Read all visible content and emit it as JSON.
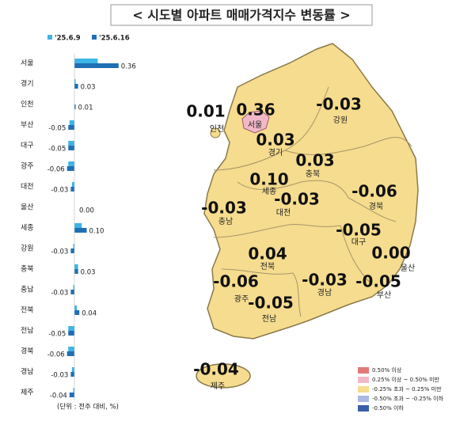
{
  "chart_data": {
    "type": "hbar",
    "title": "< 시도별 아파트 매매가격지수 변동률 >",
    "note": "(단위 : 전주 대비, %)",
    "categories": [
      "서울",
      "경기",
      "인천",
      "부산",
      "대구",
      "광주",
      "대전",
      "울산",
      "세종",
      "강원",
      "충북",
      "충남",
      "전북",
      "전남",
      "경북",
      "경남",
      "제주"
    ],
    "series": [
      {
        "name": "'25.6.9",
        "color": "#3fb4e6",
        "values": [
          0.19,
          0.01,
          0,
          -0.04,
          -0.05,
          -0.05,
          -0.02,
          0,
          0.06,
          -0.01,
          0.03,
          -0.01,
          0.02,
          -0.05,
          -0.05,
          -0.02,
          -0.01
        ]
      },
      {
        "name": "'25.6.16",
        "color": "#1f6fb5",
        "values": [
          0.36,
          0.03,
          0.01,
          -0.05,
          -0.05,
          -0.06,
          -0.03,
          0,
          0.1,
          -0.03,
          0.03,
          -0.03,
          0.04,
          -0.05,
          -0.06,
          -0.03,
          -0.04
        ],
        "value_labels": [
          "0.36",
          "0.03",
          "0.01",
          "-0.05",
          "-0.05",
          "-0.06",
          "-0.03",
          "0.00",
          "0.10",
          "-0.03",
          "0.03",
          "-0.03",
          "0.04",
          "-0.05",
          "-0.06",
          "-0.03",
          "-0.04"
        ]
      }
    ]
  },
  "map": {
    "regions": [
      {
        "name": "인천",
        "value": "0.01"
      },
      {
        "name": "서울",
        "value": "0.36"
      },
      {
        "name": "경기",
        "value": "0.03"
      },
      {
        "name": "강원",
        "value": "-0.03"
      },
      {
        "name": "충북",
        "value": "0.03"
      },
      {
        "name": "세종",
        "value": "0.10"
      },
      {
        "name": "충남",
        "value": "-0.03"
      },
      {
        "name": "대전",
        "value": "-0.03"
      },
      {
        "name": "경북",
        "value": "-0.06"
      },
      {
        "name": "대구",
        "value": "-0.05"
      },
      {
        "name": "전북",
        "value": "0.04"
      },
      {
        "name": "울산",
        "value": "0.00"
      },
      {
        "name": "경남",
        "value": "-0.03"
      },
      {
        "name": "부산",
        "value": "-0.05"
      },
      {
        "name": "광주",
        "value": "-0.06"
      },
      {
        "name": "전남",
        "value": "-0.05"
      },
      {
        "name": "제주",
        "value": "-0.04"
      }
    ],
    "legend": [
      {
        "label": "0.50% 이상",
        "color": "#e07a7a"
      },
      {
        "label": "0.25% 이상 ~ 0.50% 미만",
        "color": "#f2b8c8"
      },
      {
        "label": "-0.25% 초과 ~ 0.25% 미만",
        "color": "#f5dc8e"
      },
      {
        "label": "-0.50% 초과 ~ -0.25% 이하",
        "color": "#a9b9e2"
      },
      {
        "label": "-0.50% 이하",
        "color": "#3b5ea8"
      }
    ]
  }
}
